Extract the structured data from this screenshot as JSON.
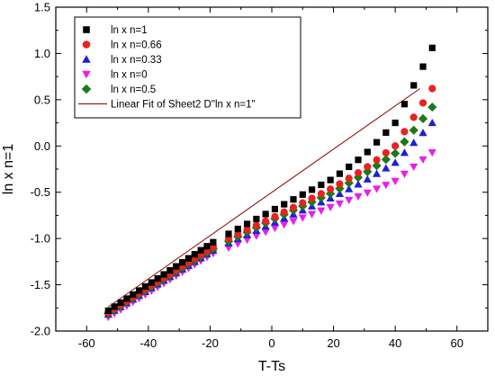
{
  "chart_data": {
    "type": "scatter",
    "xlabel": "T-Ts",
    "ylabel": "ln x n=1",
    "xlim": [
      -70,
      70
    ],
    "ylim": [
      -2.0,
      1.5
    ],
    "xticks": [
      -60,
      -40,
      -20,
      0,
      20,
      40,
      60
    ],
    "yticks": [
      -2.0,
      -1.5,
      -1.0,
      -0.5,
      0.0,
      0.5,
      1.0,
      1.5
    ],
    "xtick_labels": [
      "-60",
      "-40",
      "-20",
      "0",
      "20",
      "40",
      "60"
    ],
    "ytick_labels": [
      "-2.0",
      "-1.5",
      "-1.0",
      "-0.5",
      "0.0",
      "0.5",
      "1.0",
      "1.5"
    ],
    "grid": false,
    "legend_position": "top-left",
    "x_segments": [
      {
        "start": -53,
        "end": -19,
        "step": 2
      },
      {
        "start": -14,
        "end": 52,
        "step": 3
      }
    ],
    "series": [
      {
        "name": "ln x n=1",
        "marker": "square",
        "color": "#000000",
        "knots": [
          [
            -53,
            -1.78
          ],
          [
            -19,
            -1.04
          ],
          [
            -14,
            -0.95
          ],
          [
            0,
            -0.7
          ],
          [
            20,
            -0.35
          ],
          [
            30,
            -0.1
          ],
          [
            40,
            0.25
          ],
          [
            52,
            1.06
          ]
        ]
      },
      {
        "name": "ln x n=0.66",
        "marker": "circle",
        "color": "#e8221f",
        "knots": [
          [
            -53,
            -1.8
          ],
          [
            -19,
            -1.09
          ],
          [
            -14,
            -1.0
          ],
          [
            0,
            -0.78
          ],
          [
            20,
            -0.45
          ],
          [
            30,
            -0.25
          ],
          [
            40,
            0.0
          ],
          [
            52,
            0.62
          ]
        ]
      },
      {
        "name": "ln x n=0.33",
        "marker": "triangle-up",
        "color": "#1f1fd6",
        "knots": [
          [
            -53,
            -1.82
          ],
          [
            -19,
            -1.13
          ],
          [
            -14,
            -1.05
          ],
          [
            0,
            -0.84
          ],
          [
            20,
            -0.55
          ],
          [
            30,
            -0.38
          ],
          [
            40,
            -0.18
          ],
          [
            52,
            0.25
          ]
        ]
      },
      {
        "name": "ln x n=0",
        "marker": "triangle-down",
        "color": "#e81fe8",
        "knots": [
          [
            -53,
            -1.85
          ],
          [
            -19,
            -1.16
          ],
          [
            -14,
            -1.1
          ],
          [
            0,
            -0.9
          ],
          [
            20,
            -0.65
          ],
          [
            30,
            -0.52
          ],
          [
            40,
            -0.38
          ],
          [
            52,
            -0.07
          ]
        ]
      },
      {
        "name": "ln x n=0.5",
        "marker": "diamond",
        "color": "#1a7a1a",
        "knots": [
          [
            -53,
            -1.81
          ],
          [
            -19,
            -1.11
          ],
          [
            -14,
            -1.03
          ],
          [
            0,
            -0.8
          ],
          [
            20,
            -0.5
          ],
          [
            30,
            -0.3
          ],
          [
            40,
            -0.08
          ],
          [
            52,
            0.42
          ]
        ]
      }
    ],
    "fit_line": {
      "name": "Linear Fit of Sheet2 D\"ln x n=1\"",
      "color": "#8b0000",
      "points": [
        [
          -53,
          -1.74
        ],
        [
          48,
          0.62
        ]
      ]
    }
  }
}
